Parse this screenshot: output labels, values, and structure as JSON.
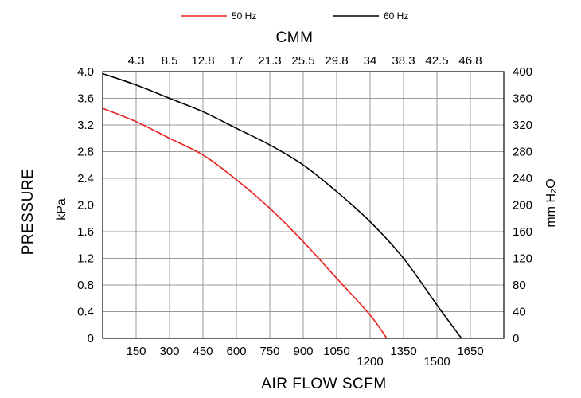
{
  "chart_data": {
    "type": "line",
    "legend": [
      {
        "name": "50 Hz",
        "color": "#e8211f"
      },
      {
        "name": "60 Hz",
        "color": "#000000"
      }
    ],
    "legend_position": "top-center",
    "xlabel": "AIR FLOW  SCFM",
    "x2label": "CMM",
    "ylabel": "PRESSURE",
    "ylabel_unit": "kPa",
    "y2label": "mm H₂O",
    "xlim": [
      0,
      1800
    ],
    "ylim": [
      0,
      4.0
    ],
    "y2lim": [
      0,
      400
    ],
    "grid": true,
    "x_ticks": [
      {
        "value": 150,
        "label": "150"
      },
      {
        "value": 300,
        "label": "300"
      },
      {
        "value": 450,
        "label": "450"
      },
      {
        "value": 600,
        "label": "600"
      },
      {
        "value": 750,
        "label": "750"
      },
      {
        "value": 900,
        "label": "900"
      },
      {
        "value": 1050,
        "label": "1050"
      },
      {
        "value": 1200,
        "label": "1200"
      },
      {
        "value": 1350,
        "label": "1350"
      },
      {
        "value": 1500,
        "label": "1500"
      },
      {
        "value": 1650,
        "label": "1650"
      }
    ],
    "x2_ticks": [
      "4.3",
      "8.5",
      "12.8",
      "17",
      "21.3",
      "25.5",
      "29.8",
      "34",
      "38.3",
      "42.5",
      "46.8"
    ],
    "y_ticks": [
      "0",
      "0.4",
      "0.8",
      "1.2",
      "1.6",
      "2.0",
      "2.4",
      "2.8",
      "3.2",
      "3.6",
      "4.0"
    ],
    "y2_ticks": [
      "0",
      "40",
      "80",
      "120",
      "160",
      "200",
      "240",
      "280",
      "320",
      "360",
      "400"
    ],
    "series": [
      {
        "name": "50 Hz",
        "color": "#e8211f",
        "x": [
          0,
          150,
          300,
          450,
          600,
          750,
          900,
          1050,
          1200,
          1275
        ],
        "y": [
          3.45,
          3.25,
          3.0,
          2.75,
          2.38,
          1.95,
          1.45,
          0.9,
          0.35,
          0.0
        ]
      },
      {
        "name": "60 Hz",
        "color": "#000000",
        "x": [
          0,
          150,
          300,
          450,
          600,
          750,
          900,
          1050,
          1200,
          1350,
          1500,
          1610
        ],
        "y": [
          3.97,
          3.8,
          3.6,
          3.4,
          3.15,
          2.9,
          2.6,
          2.2,
          1.75,
          1.2,
          0.5,
          0.0
        ]
      }
    ]
  }
}
